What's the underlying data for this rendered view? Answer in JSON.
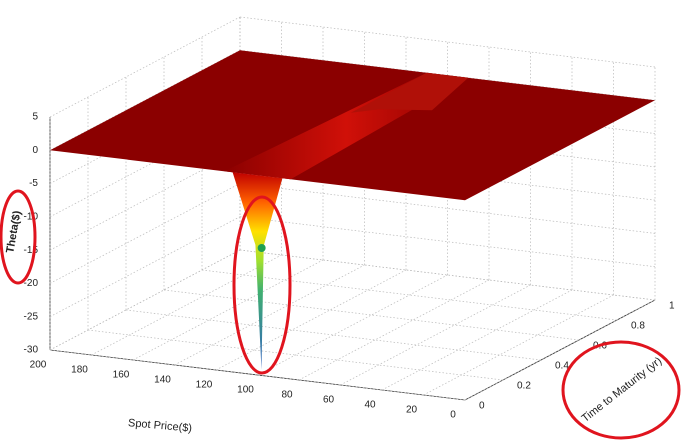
{
  "chart_data": {
    "type": "surface",
    "z_label": "Theta($)",
    "x_label": "Spot Price($)",
    "y_label": "Time to Maturity (yr)",
    "xlim": [
      200,
      0
    ],
    "xticks": [
      200,
      180,
      160,
      140,
      120,
      100,
      80,
      60,
      40,
      20,
      0
    ],
    "ylim": [
      0,
      1
    ],
    "yticks": [
      0,
      0.2,
      0.4,
      0.6,
      0.8,
      1
    ],
    "zlim": [
      -30,
      5
    ],
    "zticks": [
      5,
      0,
      -5,
      -10,
      -15,
      -20,
      -25,
      -30
    ],
    "grid": true
  }
}
